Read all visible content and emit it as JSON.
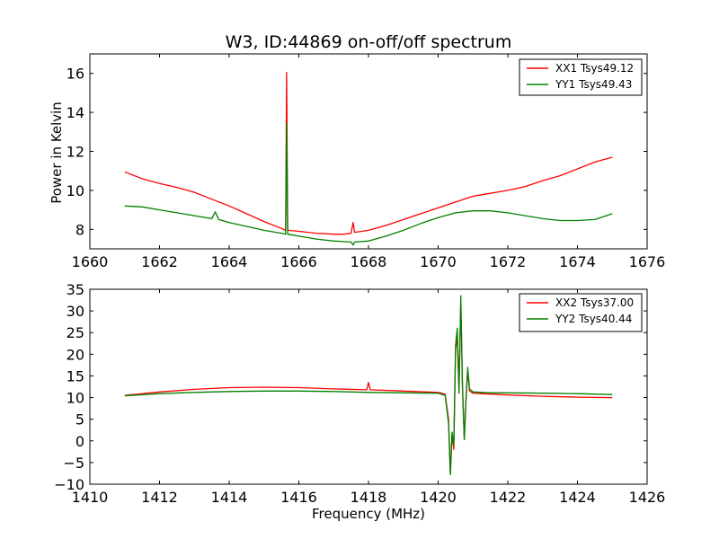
{
  "figure": {
    "title": "W3, ID:44869 on-off/off spectrum",
    "xlabel": "Frequency (MHz)",
    "ylabel": "Power in Kelvin"
  },
  "chart_data": [
    {
      "type": "line",
      "title": "W3, ID:44869 on-off/off spectrum",
      "xlabel": "",
      "ylabel": "Power in Kelvin",
      "xlim": [
        1660,
        1676
      ],
      "ylim": [
        7,
        17
      ],
      "xticks": [
        1660,
        1662,
        1664,
        1666,
        1668,
        1670,
        1672,
        1674,
        1676
      ],
      "yticks": [
        8,
        10,
        12,
        14,
        16
      ],
      "xtick_labels": [
        "1660",
        "1662",
        "1664",
        "1666",
        "1668",
        "1670",
        "1672",
        "1674",
        "1676"
      ],
      "ytick_labels": [
        "8",
        "10",
        "12",
        "14",
        "16"
      ],
      "grid": false,
      "legend_position": "top-right",
      "series": [
        {
          "name": "XX1 Tsys49.12",
          "color": "#ff0000",
          "x": [
            1661.0,
            1661.5,
            1662.0,
            1662.5,
            1663.0,
            1663.5,
            1664.0,
            1664.5,
            1665.0,
            1665.5,
            1665.62,
            1665.65,
            1665.68,
            1666.0,
            1666.5,
            1667.0,
            1667.3,
            1667.5,
            1667.56,
            1667.6,
            1668.0,
            1668.5,
            1669.0,
            1669.5,
            1670.0,
            1670.5,
            1671.0,
            1671.5,
            1672.0,
            1672.5,
            1673.0,
            1673.5,
            1674.0,
            1674.5,
            1675.0
          ],
          "y": [
            10.95,
            10.6,
            10.35,
            10.15,
            9.9,
            9.55,
            9.2,
            8.8,
            8.4,
            8.05,
            7.95,
            16.05,
            7.95,
            7.9,
            7.8,
            7.75,
            7.75,
            7.8,
            8.35,
            7.85,
            7.95,
            8.2,
            8.5,
            8.8,
            9.1,
            9.4,
            9.7,
            9.85,
            10.0,
            10.2,
            10.5,
            10.75,
            11.1,
            11.45,
            11.7
          ]
        },
        {
          "name": "YY1 Tsys49.43",
          "color": "#008000",
          "x": [
            1661.0,
            1661.5,
            1662.0,
            1662.5,
            1663.0,
            1663.5,
            1663.6,
            1663.7,
            1664.0,
            1664.5,
            1665.0,
            1665.5,
            1665.62,
            1665.65,
            1665.68,
            1666.0,
            1666.5,
            1667.0,
            1667.5,
            1667.56,
            1667.6,
            1668.0,
            1668.5,
            1669.0,
            1669.5,
            1670.0,
            1670.5,
            1671.0,
            1671.5,
            1672.0,
            1672.5,
            1673.0,
            1673.5,
            1674.0,
            1674.5,
            1675.0
          ],
          "y": [
            9.2,
            9.15,
            9.0,
            8.85,
            8.7,
            8.55,
            8.9,
            8.5,
            8.35,
            8.15,
            7.95,
            7.8,
            7.75,
            13.45,
            7.75,
            7.65,
            7.5,
            7.4,
            7.35,
            7.2,
            7.35,
            7.4,
            7.65,
            7.95,
            8.3,
            8.6,
            8.85,
            8.95,
            8.95,
            8.85,
            8.7,
            8.55,
            8.45,
            8.45,
            8.5,
            8.8
          ]
        }
      ]
    },
    {
      "type": "line",
      "title": "",
      "xlabel": "Frequency (MHz)",
      "ylabel": "",
      "xlim": [
        1410,
        1426
      ],
      "ylim": [
        -10,
        35
      ],
      "xticks": [
        1410,
        1412,
        1414,
        1416,
        1418,
        1420,
        1422,
        1424,
        1426
      ],
      "yticks": [
        -10,
        -5,
        0,
        5,
        10,
        15,
        20,
        25,
        30,
        35
      ],
      "xtick_labels": [
        "1410",
        "1412",
        "1414",
        "1416",
        "1418",
        "1420",
        "1422",
        "1424",
        "1426"
      ],
      "ytick_labels": [
        "−10",
        "−5",
        "0",
        "5",
        "10",
        "15",
        "20",
        "25",
        "30",
        "35"
      ],
      "grid": false,
      "legend_position": "top-right",
      "series": [
        {
          "name": "XX2 Tsys37.00",
          "color": "#ff0000",
          "x": [
            1411.0,
            1412.0,
            1413.0,
            1414.0,
            1415.0,
            1416.0,
            1417.0,
            1417.95,
            1418.0,
            1418.05,
            1419.0,
            1420.0,
            1420.2,
            1420.3,
            1420.35,
            1420.4,
            1420.45,
            1420.5,
            1420.55,
            1420.6,
            1420.65,
            1420.7,
            1420.75,
            1420.8,
            1420.85,
            1420.9,
            1421.0,
            1421.5,
            1422.0,
            1423.0,
            1424.0,
            1425.0
          ],
          "y": [
            10.5,
            11.3,
            11.9,
            12.3,
            12.4,
            12.3,
            12.0,
            11.8,
            13.5,
            11.8,
            11.5,
            11.2,
            10.8,
            5.0,
            -7.5,
            1.5,
            -2.0,
            21.0,
            24.0,
            12.0,
            32.0,
            12.5,
            0.5,
            10.0,
            16.0,
            11.5,
            11.0,
            10.8,
            10.6,
            10.3,
            10.1,
            10.0
          ]
        },
        {
          "name": "YY2 Tsys40.44",
          "color": "#008000",
          "x": [
            1411.0,
            1412.0,
            1413.0,
            1414.0,
            1415.0,
            1416.0,
            1417.0,
            1418.0,
            1419.0,
            1420.0,
            1420.2,
            1420.3,
            1420.35,
            1420.4,
            1420.45,
            1420.5,
            1420.55,
            1420.6,
            1420.65,
            1420.7,
            1420.75,
            1420.8,
            1420.85,
            1420.9,
            1421.0,
            1421.5,
            1422.0,
            1423.0,
            1424.0,
            1425.0
          ],
          "y": [
            10.4,
            10.9,
            11.2,
            11.4,
            11.5,
            11.5,
            11.4,
            11.2,
            11.1,
            11.0,
            10.5,
            4.0,
            -7.8,
            2.0,
            -1.0,
            22.0,
            26.0,
            11.0,
            33.5,
            12.0,
            0.3,
            9.5,
            17.0,
            12.0,
            11.3,
            11.1,
            11.1,
            11.0,
            10.9,
            10.7
          ]
        }
      ]
    }
  ]
}
